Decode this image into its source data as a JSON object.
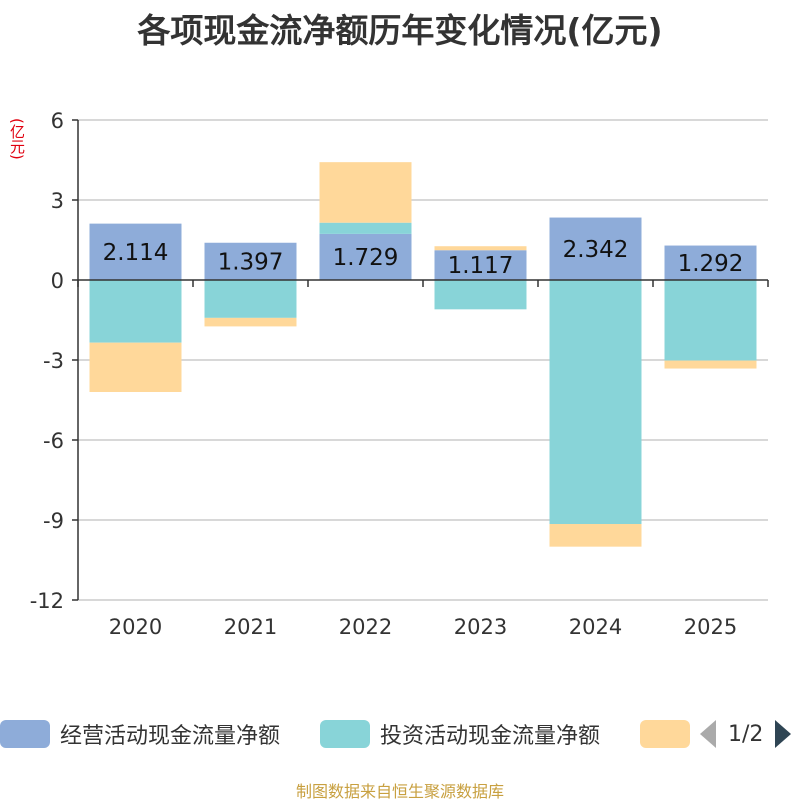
{
  "chart_data": {
    "type": "bar",
    "stacked": true,
    "title": "各项现金流净额历年变化情况(亿元)",
    "ylabel": "(亿元)",
    "categories": [
      "2020",
      "2021",
      "2022",
      "2023",
      "2024",
      "2025"
    ],
    "ylim": [
      -12,
      6
    ],
    "yticks": [
      6,
      3,
      0,
      -3,
      -6,
      -9,
      -12
    ],
    "series": [
      {
        "name": "经营活动现金流量净额",
        "color": "#8eacd9",
        "values": [
          2.114,
          1.397,
          1.729,
          1.117,
          2.342,
          1.292
        ],
        "show_labels": true
      },
      {
        "name": "投资活动现金流量净额",
        "color": "#88d4d8",
        "values": [
          -2.35,
          -1.42,
          0.42,
          -1.1,
          -9.15,
          -3.02
        ],
        "show_labels": false
      },
      {
        "name": "",
        "color": "#ffd89a",
        "values": [
          -1.85,
          -0.32,
          2.27,
          0.15,
          -0.85,
          -0.3
        ],
        "show_labels": false
      }
    ],
    "legend_position": "bottom"
  },
  "legend": {
    "items": [
      {
        "label": "经营活动现金流量净额",
        "color": "#8eacd9"
      },
      {
        "label": "投资活动现金流量净额",
        "color": "#88d4d8"
      },
      {
        "label": "",
        "color": "#ffd89a"
      }
    ],
    "pager_text": "1/2"
  },
  "footer": {
    "source": "制图数据来自恒生聚源数据库"
  }
}
